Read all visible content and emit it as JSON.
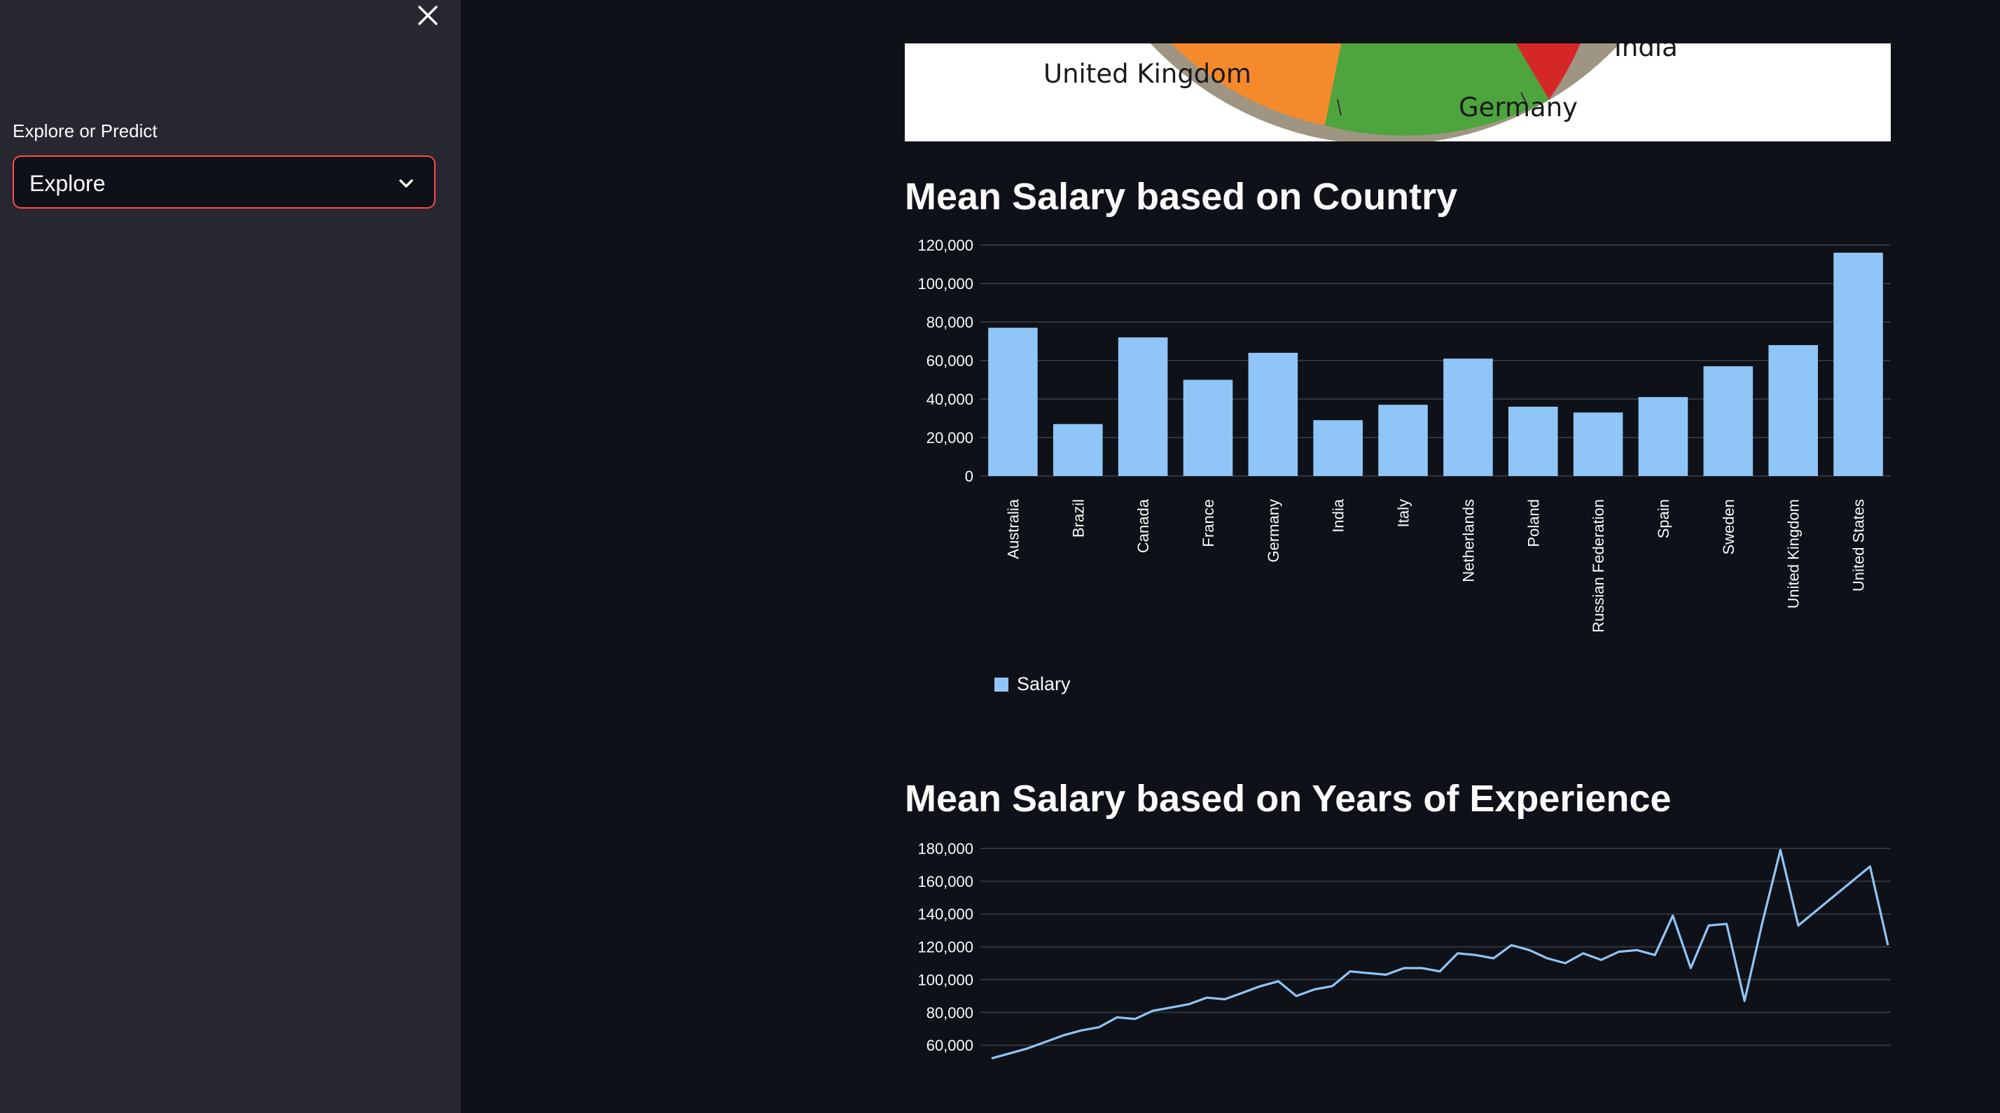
{
  "sidebar": {
    "select_label": "Explore or Predict",
    "select_value": "Explore"
  },
  "pie_fragment": {
    "labels": [
      "United Kingdom",
      "Germany",
      "India"
    ],
    "colors": {
      "uk": "#f58a2c",
      "germany": "#4ea43d",
      "india": "#d62728",
      "rim": "#9e9583"
    }
  },
  "charts": {
    "country_title": "Mean Salary based on Country",
    "experience_title": "Mean Salary based on Years of Experience"
  },
  "chart_data": [
    {
      "type": "bar",
      "title": "Mean Salary based on Country",
      "categories": [
        "Australia",
        "Brazil",
        "Canada",
        "France",
        "Germany",
        "India",
        "Italy",
        "Netherlands",
        "Poland",
        "Russian Federation",
        "Spain",
        "Sweden",
        "United Kingdom",
        "United States"
      ],
      "series": [
        {
          "name": "Salary",
          "values": [
            77000,
            27000,
            72000,
            50000,
            64000,
            29000,
            37000,
            61000,
            36000,
            33000,
            41000,
            57000,
            68000,
            116000
          ]
        }
      ],
      "yticks": [
        0,
        20000,
        40000,
        60000,
        80000,
        100000,
        120000
      ],
      "ytick_labels": [
        "0",
        "20,000",
        "40,000",
        "60,000",
        "80,000",
        "100,000",
        "120,000"
      ],
      "ylim": [
        0,
        120000
      ],
      "legend": "bottom-left",
      "color": "#8fc5f7"
    },
    {
      "type": "line",
      "title": "Mean Salary based on Years of Experience",
      "x": [
        0,
        1,
        2,
        3,
        4,
        5,
        6,
        7,
        8,
        9,
        10,
        11,
        12,
        13,
        14,
        15,
        16,
        17,
        18,
        19,
        20,
        21,
        22,
        23,
        24,
        25,
        26,
        27,
        28,
        29,
        30,
        31,
        32,
        33,
        34,
        35,
        36,
        37,
        38,
        39,
        40,
        41,
        42,
        43,
        44,
        45,
        46,
        47,
        48,
        49,
        50
      ],
      "values": [
        52000,
        55000,
        58000,
        62000,
        66000,
        69000,
        71000,
        77000,
        76000,
        81000,
        83000,
        85000,
        89000,
        88000,
        92000,
        96000,
        99000,
        90000,
        94000,
        96000,
        105000,
        104000,
        103000,
        107000,
        107000,
        105000,
        116000,
        115000,
        113000,
        121000,
        118000,
        113000,
        110000,
        116000,
        112000,
        117000,
        118000,
        115000,
        139000,
        107000,
        133000,
        134000,
        87000,
        135000,
        179000,
        133000,
        142000,
        151000,
        160000,
        169000,
        121000
      ],
      "yticks": [
        60000,
        80000,
        100000,
        120000,
        140000,
        160000,
        180000
      ],
      "ytick_labels": [
        "60,000",
        "80,000",
        "100,000",
        "120,000",
        "140,000",
        "160,000",
        "180,000"
      ],
      "color": "#8fc5f7"
    }
  ]
}
